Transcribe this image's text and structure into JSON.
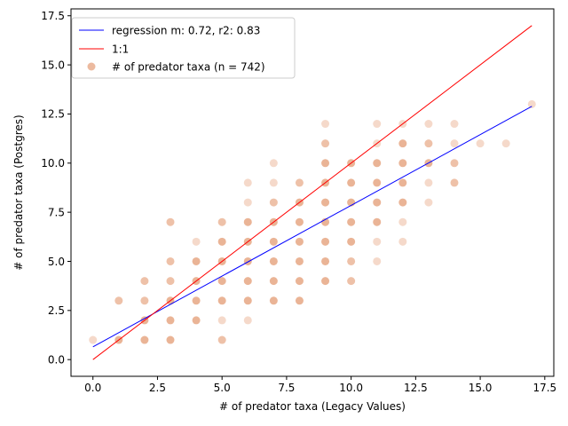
{
  "chart_data": {
    "type": "scatter",
    "xlabel": "# of predator taxa (Legacy Values)",
    "ylabel": "# of predator taxa (Postgres)",
    "xlim": [
      -0.85,
      17.85
    ],
    "ylim": [
      -0.85,
      17.85
    ],
    "xticks": [
      0.0,
      2.5,
      5.0,
      7.5,
      10.0,
      12.5,
      15.0,
      17.5
    ],
    "yticks": [
      0.0,
      2.5,
      5.0,
      7.5,
      10.0,
      12.5,
      15.0,
      17.5
    ],
    "xtick_labels": [
      "0.0",
      "2.5",
      "5.0",
      "7.5",
      "10.0",
      "12.5",
      "15.0",
      "17.5"
    ],
    "ytick_labels": [
      "0.0",
      "2.5",
      "5.0",
      "7.5",
      "10.0",
      "12.5",
      "15.0",
      "17.5"
    ],
    "grid": false,
    "legend_position": "top-left",
    "series": [
      {
        "name": "regression m: 0.72, r2: 0.83",
        "kind": "line",
        "color": "#0000ff",
        "x": [
          0,
          17
        ],
        "y": [
          0.65,
          12.89
        ]
      },
      {
        "name": "1:1",
        "kind": "line",
        "color": "#ff0000",
        "x": [
          0,
          17
        ],
        "y": [
          0,
          17
        ]
      },
      {
        "name": "# of predator taxa (n = 742)",
        "kind": "scatter",
        "color": "#d9763f",
        "points": [
          {
            "x": 0,
            "y": 1,
            "w": 0.45
          },
          {
            "x": 1,
            "y": 1,
            "w": 1
          },
          {
            "x": 1,
            "y": 3,
            "w": 0.8
          },
          {
            "x": 2,
            "y": 1,
            "w": 1
          },
          {
            "x": 2,
            "y": 2,
            "w": 1
          },
          {
            "x": 2,
            "y": 3,
            "w": 0.8
          },
          {
            "x": 2,
            "y": 4,
            "w": 0.8
          },
          {
            "x": 3,
            "y": 1,
            "w": 1
          },
          {
            "x": 3,
            "y": 2,
            "w": 1
          },
          {
            "x": 3,
            "y": 3,
            "w": 1
          },
          {
            "x": 3,
            "y": 4,
            "w": 0.8
          },
          {
            "x": 3,
            "y": 5,
            "w": 0.8
          },
          {
            "x": 3,
            "y": 7,
            "w": 0.8
          },
          {
            "x": 4,
            "y": 2,
            "w": 1
          },
          {
            "x": 4,
            "y": 3,
            "w": 1
          },
          {
            "x": 4,
            "y": 4,
            "w": 1
          },
          {
            "x": 4,
            "y": 5,
            "w": 1
          },
          {
            "x": 4,
            "y": 6,
            "w": 0.45
          },
          {
            "x": 5,
            "y": 1,
            "w": 0.8
          },
          {
            "x": 5,
            "y": 2,
            "w": 0.45
          },
          {
            "x": 5,
            "y": 3,
            "w": 1
          },
          {
            "x": 5,
            "y": 4,
            "w": 1
          },
          {
            "x": 5,
            "y": 5,
            "w": 1
          },
          {
            "x": 5,
            "y": 6,
            "w": 1
          },
          {
            "x": 5,
            "y": 7,
            "w": 0.8
          },
          {
            "x": 6,
            "y": 2,
            "w": 0.45
          },
          {
            "x": 6,
            "y": 3,
            "w": 1
          },
          {
            "x": 6,
            "y": 4,
            "w": 1
          },
          {
            "x": 6,
            "y": 5,
            "w": 1
          },
          {
            "x": 6,
            "y": 6,
            "w": 1
          },
          {
            "x": 6,
            "y": 7,
            "w": 1
          },
          {
            "x": 6,
            "y": 8,
            "w": 0.45
          },
          {
            "x": 6,
            "y": 9,
            "w": 0.45
          },
          {
            "x": 7,
            "y": 3,
            "w": 1
          },
          {
            "x": 7,
            "y": 4,
            "w": 1
          },
          {
            "x": 7,
            "y": 5,
            "w": 1
          },
          {
            "x": 7,
            "y": 6,
            "w": 1
          },
          {
            "x": 7,
            "y": 7,
            "w": 1
          },
          {
            "x": 7,
            "y": 8,
            "w": 0.8
          },
          {
            "x": 7,
            "y": 9,
            "w": 0.45
          },
          {
            "x": 7,
            "y": 10,
            "w": 0.45
          },
          {
            "x": 8,
            "y": 3,
            "w": 1
          },
          {
            "x": 8,
            "y": 4,
            "w": 1
          },
          {
            "x": 8,
            "y": 5,
            "w": 1
          },
          {
            "x": 8,
            "y": 6,
            "w": 1
          },
          {
            "x": 8,
            "y": 7,
            "w": 1
          },
          {
            "x": 8,
            "y": 8,
            "w": 1
          },
          {
            "x": 8,
            "y": 9,
            "w": 0.8
          },
          {
            "x": 9,
            "y": 4,
            "w": 1
          },
          {
            "x": 9,
            "y": 5,
            "w": 1
          },
          {
            "x": 9,
            "y": 6,
            "w": 1
          },
          {
            "x": 9,
            "y": 7,
            "w": 1
          },
          {
            "x": 9,
            "y": 8,
            "w": 1
          },
          {
            "x": 9,
            "y": 9,
            "w": 1
          },
          {
            "x": 9,
            "y": 10,
            "w": 1
          },
          {
            "x": 9,
            "y": 11,
            "w": 0.8
          },
          {
            "x": 9,
            "y": 12,
            "w": 0.45
          },
          {
            "x": 10,
            "y": 4,
            "w": 0.8
          },
          {
            "x": 10,
            "y": 5,
            "w": 0.8
          },
          {
            "x": 10,
            "y": 6,
            "w": 1
          },
          {
            "x": 10,
            "y": 7,
            "w": 1
          },
          {
            "x": 10,
            "y": 8,
            "w": 1
          },
          {
            "x": 10,
            "y": 9,
            "w": 1
          },
          {
            "x": 10,
            "y": 10,
            "w": 1
          },
          {
            "x": 11,
            "y": 5,
            "w": 0.45
          },
          {
            "x": 11,
            "y": 6,
            "w": 0.45
          },
          {
            "x": 11,
            "y": 7,
            "w": 1
          },
          {
            "x": 11,
            "y": 8,
            "w": 1
          },
          {
            "x": 11,
            "y": 9,
            "w": 1
          },
          {
            "x": 11,
            "y": 10,
            "w": 1
          },
          {
            "x": 11,
            "y": 11,
            "w": 0.45
          },
          {
            "x": 11,
            "y": 12,
            "w": 0.45
          },
          {
            "x": 12,
            "y": 6,
            "w": 0.45
          },
          {
            "x": 12,
            "y": 7,
            "w": 0.45
          },
          {
            "x": 12,
            "y": 8,
            "w": 1
          },
          {
            "x": 12,
            "y": 9,
            "w": 1
          },
          {
            "x": 12,
            "y": 10,
            "w": 1
          },
          {
            "x": 12,
            "y": 11,
            "w": 1
          },
          {
            "x": 12,
            "y": 12,
            "w": 0.45
          },
          {
            "x": 13,
            "y": 8,
            "w": 0.45
          },
          {
            "x": 13,
            "y": 9,
            "w": 0.45
          },
          {
            "x": 13,
            "y": 10,
            "w": 1
          },
          {
            "x": 13,
            "y": 11,
            "w": 0.8
          },
          {
            "x": 13,
            "y": 12,
            "w": 0.45
          },
          {
            "x": 14,
            "y": 9,
            "w": 0.8
          },
          {
            "x": 14,
            "y": 10,
            "w": 0.8
          },
          {
            "x": 14,
            "y": 11,
            "w": 0.45
          },
          {
            "x": 14,
            "y": 12,
            "w": 0.45
          },
          {
            "x": 15,
            "y": 11,
            "w": 0.45
          },
          {
            "x": 16,
            "y": 11,
            "w": 0.45
          },
          {
            "x": 17,
            "y": 13,
            "w": 0.45
          }
        ]
      }
    ]
  }
}
